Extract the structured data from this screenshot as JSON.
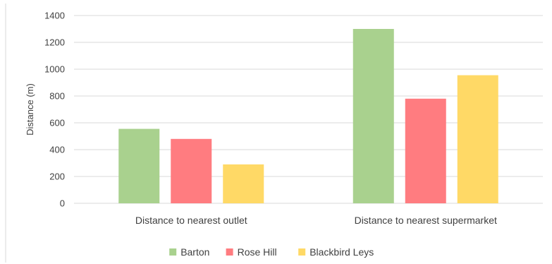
{
  "chart_data": {
    "type": "bar",
    "title": "",
    "xlabel": "",
    "ylabel": "Distance (m)",
    "ylim": [
      0,
      1400
    ],
    "yticks": [
      0,
      200,
      400,
      600,
      800,
      1000,
      1200,
      1400
    ],
    "categories": [
      "Distance to nearest outlet",
      "Distance to nearest supermarket"
    ],
    "series": [
      {
        "name": "Barton",
        "color": "#a9d18e",
        "values": [
          555,
          1300
        ]
      },
      {
        "name": "Rose Hill",
        "color": "#ff7c80",
        "values": [
          480,
          780
        ]
      },
      {
        "name": "Blackbird Leys",
        "color": "#ffd966",
        "values": [
          290,
          955
        ]
      }
    ],
    "grid": true,
    "legend": "bottom"
  }
}
